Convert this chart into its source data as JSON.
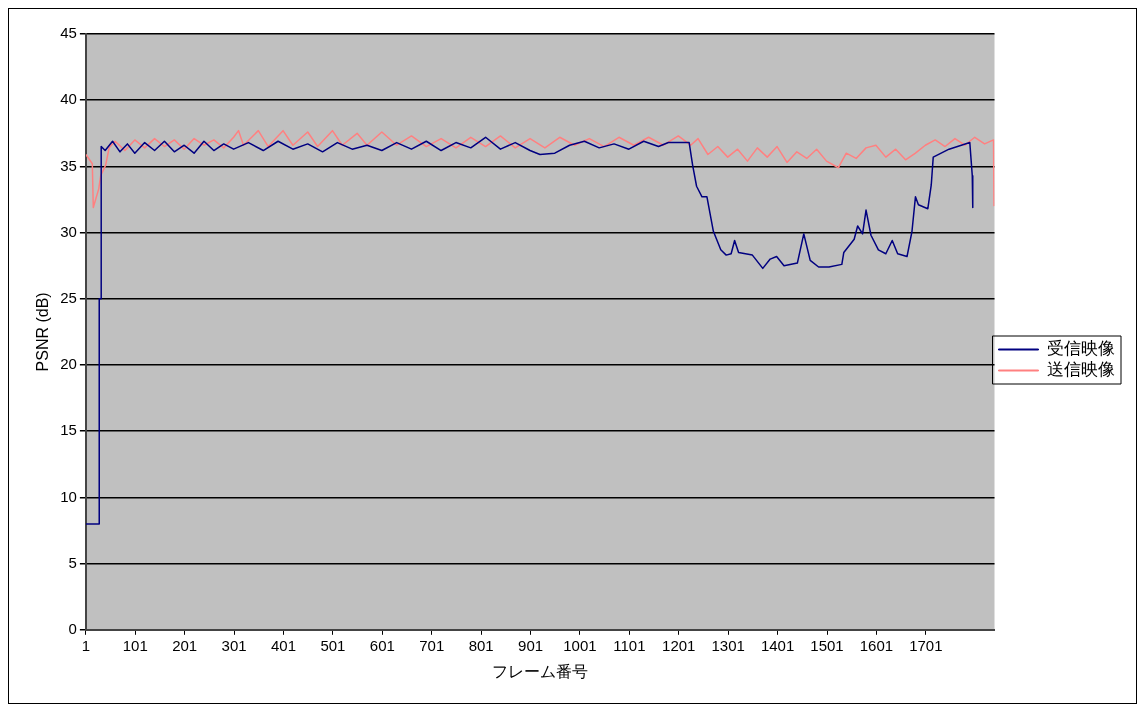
{
  "chart_data": {
    "type": "line",
    "xlabel": "フレーム番号",
    "ylabel": "PSNR (dB)",
    "xlim": [
      1,
      1840
    ],
    "xticks": [
      1,
      101,
      201,
      301,
      401,
      501,
      601,
      701,
      801,
      901,
      1001,
      1101,
      1201,
      1301,
      1401,
      1501,
      1601,
      1701
    ],
    "ylim": [
      0,
      45
    ],
    "yticks": [
      0,
      5,
      10,
      15,
      20,
      25,
      30,
      35,
      40,
      45
    ],
    "grid": "y",
    "legend": "right",
    "marker": "none",
    "line_style": "solid",
    "series": [
      {
        "name": "受信映像",
        "color": "#000080",
        "x": [
          1,
          28,
          28,
          32,
          32,
          40,
          55,
          70,
          85,
          100,
          120,
          140,
          160,
          180,
          200,
          220,
          240,
          260,
          280,
          300,
          330,
          360,
          390,
          420,
          450,
          480,
          510,
          540,
          570,
          600,
          630,
          660,
          690,
          720,
          750,
          780,
          810,
          840,
          870,
          900,
          920,
          950,
          980,
          1010,
          1040,
          1070,
          1100,
          1130,
          1160,
          1180,
          1222,
          1229,
          1237,
          1248,
          1258,
          1261,
          1271,
          1286,
          1297,
          1307,
          1314,
          1322,
          1350,
          1371,
          1386,
          1399,
          1414,
          1441,
          1454,
          1467,
          1484,
          1505,
          1531,
          1535,
          1556,
          1563,
          1573,
          1580,
          1590,
          1605,
          1620,
          1633,
          1644,
          1663,
          1673,
          1680,
          1686,
          1705,
          1712,
          1716,
          1748,
          1790,
          1795,
          1796
        ],
        "values": [
          8,
          8,
          25,
          25,
          36.5,
          36.2,
          36.9,
          36.1,
          36.7,
          36.0,
          36.8,
          36.2,
          36.9,
          36.1,
          36.6,
          36.0,
          36.9,
          36.2,
          36.7,
          36.3,
          36.8,
          36.2,
          36.9,
          36.3,
          36.7,
          36.1,
          36.8,
          36.3,
          36.6,
          36.2,
          36.8,
          36.3,
          36.9,
          36.2,
          36.8,
          36.4,
          37.2,
          36.3,
          36.8,
          36.2,
          35.9,
          36.0,
          36.6,
          36.9,
          36.4,
          36.7,
          36.3,
          36.9,
          36.5,
          36.8,
          36.8,
          35.1,
          33.5,
          32.7,
          32.7,
          32.1,
          30.1,
          28.7,
          28.3,
          28.4,
          29.4,
          28.5,
          28.3,
          27.3,
          28.0,
          28.2,
          27.5,
          27.7,
          29.9,
          27.9,
          27.4,
          27.4,
          27.6,
          28.5,
          29.5,
          30.5,
          29.9,
          31.7,
          29.8,
          28.7,
          28.4,
          29.4,
          28.4,
          28.2,
          30.1,
          32.7,
          32.1,
          31.8,
          33.6,
          35.7,
          36.3,
          36.8,
          34.3,
          31.9
        ]
      },
      {
        "name": "送信映像",
        "color": "#ff8080",
        "x": [
          1,
          14,
          16,
          27,
          31,
          41,
          48,
          60,
          80,
          100,
          120,
          140,
          160,
          180,
          200,
          220,
          240,
          260,
          280,
          300,
          310,
          320,
          350,
          370,
          400,
          420,
          450,
          470,
          500,
          520,
          550,
          570,
          600,
          630,
          660,
          690,
          720,
          750,
          780,
          810,
          840,
          870,
          900,
          930,
          960,
          990,
          1020,
          1050,
          1080,
          1110,
          1140,
          1170,
          1200,
          1225,
          1240,
          1260,
          1280,
          1300,
          1320,
          1340,
          1360,
          1380,
          1400,
          1420,
          1440,
          1460,
          1480,
          1500,
          1524,
          1540,
          1560,
          1580,
          1600,
          1620,
          1640,
          1660,
          1680,
          1700,
          1720,
          1740,
          1760,
          1780,
          1800,
          1820,
          1838,
          1839
        ],
        "values": [
          35.9,
          35.2,
          31.9,
          33.3,
          34.3,
          35.1,
          36.4,
          36.9,
          36.2,
          37.0,
          36.4,
          37.1,
          36.5,
          37.0,
          36.3,
          37.1,
          36.6,
          37.0,
          36.4,
          37.2,
          37.7,
          36.6,
          37.7,
          36.5,
          37.7,
          36.6,
          37.6,
          36.5,
          37.7,
          36.6,
          37.5,
          36.6,
          37.6,
          36.6,
          37.3,
          36.5,
          37.1,
          36.4,
          37.2,
          36.5,
          37.3,
          36.4,
          37.1,
          36.4,
          37.2,
          36.6,
          37.1,
          36.5,
          37.2,
          36.6,
          37.2,
          36.6,
          37.3,
          36.6,
          37.1,
          35.9,
          36.5,
          35.7,
          36.3,
          35.4,
          36.4,
          35.7,
          36.5,
          35.3,
          36.1,
          35.6,
          36.3,
          35.4,
          34.9,
          36.0,
          35.6,
          36.4,
          36.6,
          35.7,
          36.3,
          35.5,
          36.0,
          36.6,
          37.0,
          36.5,
          37.1,
          36.6,
          37.2,
          36.7,
          37.0,
          32.0
        ]
      }
    ]
  }
}
